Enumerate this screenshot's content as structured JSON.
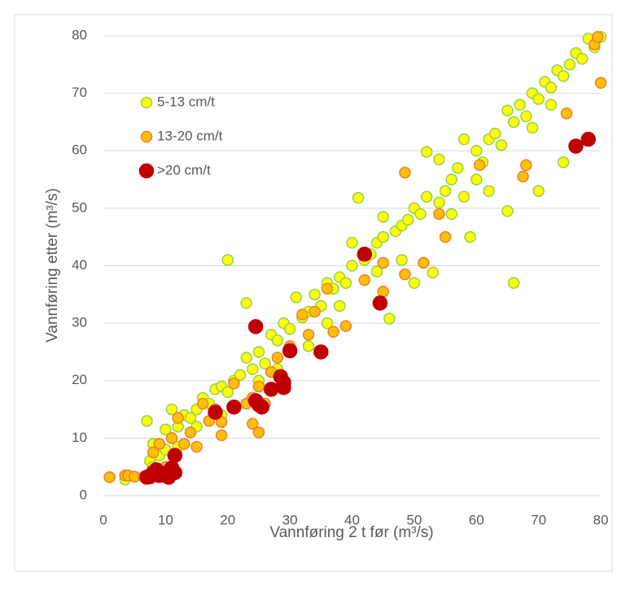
{
  "chart_data": {
    "type": "scatter",
    "x_label": "Vannføring 2 t før (m³/s)",
    "y_label": "Vannføring etter (m³/s)",
    "xlim": [
      0,
      80
    ],
    "ylim": [
      0,
      80
    ],
    "xticks": [
      0,
      10,
      20,
      30,
      40,
      50,
      60,
      70,
      80
    ],
    "yticks": [
      0,
      10,
      20,
      30,
      40,
      50,
      60,
      70,
      80
    ],
    "grid": true,
    "legend": "upper left",
    "series": [
      {
        "name": "5-13 cm/t",
        "color": "#ffff00",
        "edge": "#92d050",
        "x": [
          7,
          7.5,
          8,
          9,
          10,
          10,
          11,
          11,
          12,
          13,
          14,
          15,
          16,
          17,
          18,
          19,
          20,
          20,
          21,
          22,
          23,
          23,
          24,
          25,
          25,
          26,
          27,
          28,
          29,
          30,
          31,
          32,
          33,
          34,
          35,
          36,
          37,
          38,
          39,
          40,
          40,
          41,
          42,
          43,
          44,
          45,
          45,
          46,
          47,
          48,
          49,
          50,
          50,
          51,
          52,
          52,
          53,
          54,
          55,
          56,
          57,
          58,
          58,
          59,
          60,
          61,
          62,
          63,
          64,
          65,
          65,
          66,
          66,
          67,
          68,
          69,
          70,
          70,
          71,
          72,
          73,
          74,
          74,
          75,
          76,
          77,
          78,
          79,
          80,
          3.5,
          8,
          12,
          15,
          24,
          33,
          44,
          48,
          56,
          60,
          62,
          69,
          72,
          36,
          28,
          19,
          54,
          38
        ],
        "values": [
          13,
          6,
          9,
          7,
          11.5,
          8,
          15,
          10,
          12,
          14,
          13.5,
          15,
          17,
          16,
          18.5,
          19,
          41,
          18,
          20,
          21,
          33.5,
          24,
          22,
          25,
          20,
          23,
          28,
          27,
          30,
          29,
          34.5,
          31,
          32,
          35,
          33,
          37,
          36,
          38,
          37,
          44,
          40,
          51.8,
          41,
          42,
          44,
          48.5,
          45,
          30.8,
          46,
          47,
          48,
          50,
          37,
          49,
          52,
          59.8,
          38.8,
          58.5,
          53,
          55,
          57,
          62,
          52,
          45,
          60,
          58,
          62,
          63,
          61,
          49.5,
          67,
          37,
          65,
          68,
          66,
          70,
          53,
          69,
          72,
          71,
          74,
          58,
          73,
          75,
          77,
          76,
          79.5,
          78,
          79.8,
          2.8,
          5,
          8.5,
          12,
          17,
          26,
          39,
          41,
          49,
          55,
          53,
          64,
          68,
          30,
          22,
          14,
          51,
          33
        ]
      },
      {
        "name": "13-20 cm/t",
        "color": "#ffc000",
        "edge": "#ed7d31",
        "x": [
          1,
          3.5,
          4,
          5,
          8,
          9,
          10,
          11,
          12,
          13,
          14,
          15,
          16,
          17,
          18,
          19,
          19,
          21,
          23,
          24,
          24,
          25,
          25,
          26,
          27,
          28,
          30,
          32,
          33,
          34,
          36,
          37,
          39,
          42,
          45,
          45,
          48.5,
          48.5,
          51.5,
          54,
          55,
          60.5,
          67.5,
          68,
          74.5,
          79,
          79.5,
          80,
          8.5,
          6.5
        ],
        "values": [
          3.2,
          3.5,
          3.5,
          3.3,
          7.5,
          9,
          5,
          10,
          13.5,
          9,
          11,
          8.5,
          16,
          13,
          15,
          12.8,
          10.5,
          19.5,
          16,
          12.5,
          17,
          11,
          19,
          16,
          21.5,
          24,
          26,
          31.5,
          28,
          32,
          36,
          28.5,
          29.5,
          37.5,
          40.5,
          35.5,
          56.2,
          38.5,
          40.5,
          49,
          45,
          57.5,
          55.5,
          57.5,
          66.5,
          78.5,
          79.8,
          71.8,
          3.8,
          3.3
        ]
      },
      {
        "name": ">20 cm/t",
        "color": "#c00000",
        "edge": "#c00000",
        "x": [
          7,
          7.5,
          8,
          8.5,
          9,
          9.5,
          10,
          10.5,
          10.5,
          11,
          11.5,
          11.5,
          18,
          21,
          24.5,
          25,
          25.5,
          27,
          28.5,
          29,
          29,
          30,
          35,
          42,
          44.5,
          76,
          78,
          24.5
        ],
        "values": [
          3.2,
          3.3,
          4,
          4.5,
          3.5,
          3.8,
          3.5,
          3.2,
          4.2,
          4.8,
          7,
          4,
          14.5,
          15.4,
          29.4,
          15.8,
          15.4,
          18.5,
          20.7,
          18.8,
          19.7,
          25.2,
          25,
          42,
          33.5,
          60.8,
          62,
          16.5
        ]
      }
    ]
  }
}
